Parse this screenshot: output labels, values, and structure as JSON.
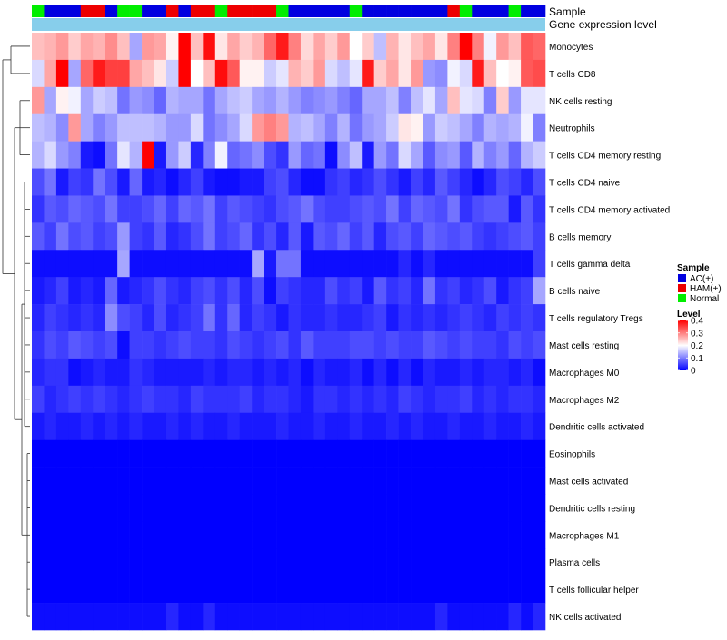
{
  "chart_data": {
    "type": "heatmap",
    "title": "",
    "annotation_labels": {
      "sample": "Sample",
      "gene_expression": "Gene expression level"
    },
    "sample_groups": [
      "Normal",
      "AC(+)",
      "AC(+)",
      "AC(+)",
      "HAM(+)",
      "HAM(+)",
      "AC(+)",
      "Normal",
      "Normal",
      "AC(+)",
      "AC(+)",
      "HAM(+)",
      "AC(+)",
      "HAM(+)",
      "HAM(+)",
      "Normal",
      "HAM(+)",
      "HAM(+)",
      "HAM(+)",
      "HAM(+)",
      "Normal",
      "AC(+)",
      "AC(+)",
      "AC(+)",
      "AC(+)",
      "AC(+)",
      "Normal",
      "AC(+)",
      "AC(+)",
      "AC(+)",
      "AC(+)",
      "AC(+)",
      "AC(+)",
      "AC(+)",
      "HAM(+)",
      "Normal",
      "AC(+)",
      "AC(+)",
      "AC(+)",
      "Normal",
      "AC(+)",
      "AC(+)"
    ],
    "rows": [
      "Monocytes",
      "T cells CD8",
      "NK cells resting",
      "Neutrophils",
      "T cells CD4 memory resting",
      "T cells CD4 naive",
      "T cells CD4 memory activated",
      "B cells memory",
      "T cells gamma delta",
      "B cells naive",
      "T cells regulatory  Tregs",
      "Mast cells resting",
      "Macrophages M0",
      "Macrophages M2",
      "Dendritic cells activated",
      "Eosinophils",
      "Mast cells activated",
      "Dendritic cells resting",
      "Macrophages M1",
      "Plasma cells",
      "T cells follicular helper",
      "NK cells activated"
    ],
    "values": [
      [
        0.25,
        0.26,
        0.28,
        0.24,
        0.27,
        0.26,
        0.29,
        0.25,
        0.13,
        0.28,
        0.27,
        0.21,
        0.42,
        0.25,
        0.39,
        0.22,
        0.27,
        0.24,
        0.26,
        0.32,
        0.38,
        0.3,
        0.23,
        0.27,
        0.24,
        0.28,
        0.2,
        0.24,
        0.15,
        0.26,
        0.22,
        0.25,
        0.27,
        0.22,
        0.3,
        0.42,
        0.3,
        0.19,
        0.28,
        0.25,
        0.33,
        0.32
      ],
      [
        0.17,
        0.27,
        0.4,
        0.13,
        0.32,
        0.38,
        0.35,
        0.35,
        0.27,
        0.25,
        0.22,
        0.16,
        0.4,
        0.2,
        0.25,
        0.39,
        0.33,
        0.21,
        0.21,
        0.16,
        0.18,
        0.26,
        0.24,
        0.28,
        0.17,
        0.15,
        0.18,
        0.38,
        0.24,
        0.27,
        0.22,
        0.28,
        0.12,
        0.11,
        0.19,
        0.17,
        0.38,
        0.25,
        0.2,
        0.21,
        0.33,
        0.34
      ],
      [
        0.28,
        0.13,
        0.21,
        0.19,
        0.13,
        0.16,
        0.15,
        0.09,
        0.12,
        0.11,
        0.08,
        0.14,
        0.13,
        0.13,
        0.09,
        0.13,
        0.15,
        0.16,
        0.13,
        0.12,
        0.14,
        0.12,
        0.1,
        0.11,
        0.12,
        0.1,
        0.08,
        0.13,
        0.13,
        0.15,
        0.1,
        0.15,
        0.18,
        0.13,
        0.25,
        0.18,
        0.17,
        0.1,
        0.24,
        0.12,
        0.18,
        0.18
      ],
      [
        0.15,
        0.14,
        0.11,
        0.28,
        0.13,
        0.1,
        0.12,
        0.15,
        0.15,
        0.15,
        0.14,
        0.12,
        0.12,
        0.17,
        0.09,
        0.11,
        0.13,
        0.17,
        0.28,
        0.3,
        0.28,
        0.14,
        0.15,
        0.13,
        0.1,
        0.14,
        0.09,
        0.12,
        0.13,
        0.16,
        0.22,
        0.21,
        0.12,
        0.16,
        0.15,
        0.13,
        0.1,
        0.14,
        0.13,
        0.14,
        0.19,
        0.1
      ],
      [
        0.14,
        0.17,
        0.12,
        0.1,
        0.02,
        0.01,
        0.09,
        0.18,
        0.14,
        0.4,
        0.02,
        0.12,
        0.16,
        0.03,
        0.1,
        0.19,
        0.08,
        0.09,
        0.11,
        0.06,
        0.04,
        0.12,
        0.08,
        0.09,
        0.01,
        0.11,
        0.15,
        0.02,
        0.12,
        0.09,
        0.17,
        0.13,
        0.07,
        0.11,
        0.12,
        0.07,
        0.14,
        0.1,
        0.12,
        0.08,
        0.14,
        0.16
      ],
      [
        0.06,
        0.09,
        0.02,
        0.05,
        0.04,
        0.09,
        0.06,
        0.02,
        0.08,
        0.02,
        0.03,
        0.01,
        0.03,
        0.05,
        0.02,
        0.01,
        0.01,
        0.02,
        0.02,
        0.05,
        0.06,
        0.03,
        0.01,
        0.01,
        0.04,
        0.05,
        0.03,
        0.04,
        0.06,
        0.04,
        0.02,
        0.05,
        0.03,
        0.07,
        0.05,
        0.03,
        0.01,
        0.03,
        0.06,
        0.05,
        0.03,
        0.06
      ],
      [
        0.04,
        0.07,
        0.06,
        0.08,
        0.07,
        0.06,
        0.09,
        0.05,
        0.05,
        0.06,
        0.08,
        0.05,
        0.08,
        0.07,
        0.09,
        0.05,
        0.07,
        0.06,
        0.05,
        0.04,
        0.06,
        0.07,
        0.09,
        0.06,
        0.05,
        0.05,
        0.06,
        0.07,
        0.06,
        0.09,
        0.05,
        0.08,
        0.07,
        0.06,
        0.09,
        0.04,
        0.06,
        0.07,
        0.07,
        0.02,
        0.07,
        0.04
      ],
      [
        0.07,
        0.05,
        0.09,
        0.06,
        0.07,
        0.05,
        0.06,
        0.12,
        0.05,
        0.04,
        0.07,
        0.03,
        0.04,
        0.06,
        0.09,
        0.05,
        0.06,
        0.08,
        0.04,
        0.06,
        0.03,
        0.07,
        0.02,
        0.07,
        0.06,
        0.08,
        0.05,
        0.07,
        0.03,
        0.06,
        0.07,
        0.05,
        0.08,
        0.07,
        0.06,
        0.07,
        0.05,
        0.04,
        0.05,
        0.06,
        0.07,
        0.05
      ],
      [
        0.01,
        0.01,
        0.01,
        0.01,
        0.01,
        0.01,
        0.01,
        0.13,
        0.01,
        0.01,
        0.01,
        0.01,
        0.01,
        0.01,
        0.01,
        0.01,
        0.01,
        0.01,
        0.13,
        0.02,
        0.09,
        0.09,
        0.01,
        0.01,
        0.01,
        0.01,
        0.01,
        0.01,
        0.01,
        0.01,
        0.03,
        0.01,
        0.03,
        0.01,
        0.01,
        0.01,
        0.01,
        0.01,
        0.01,
        0.01,
        0.01,
        0.05
      ],
      [
        0.02,
        0.03,
        0.05,
        0.02,
        0.03,
        0.02,
        0.08,
        0.02,
        0.03,
        0.04,
        0.06,
        0.04,
        0.03,
        0.05,
        0.06,
        0.04,
        0.06,
        0.03,
        0.06,
        0.01,
        0.05,
        0.04,
        0.03,
        0.03,
        0.06,
        0.04,
        0.05,
        0.02,
        0.07,
        0.04,
        0.05,
        0.03,
        0.09,
        0.04,
        0.05,
        0.03,
        0.04,
        0.06,
        0.02,
        0.04,
        0.05,
        0.13
      ],
      [
        0.03,
        0.05,
        0.04,
        0.03,
        0.04,
        0.03,
        0.11,
        0.06,
        0.05,
        0.03,
        0.06,
        0.03,
        0.04,
        0.05,
        0.09,
        0.04,
        0.08,
        0.03,
        0.05,
        0.04,
        0.02,
        0.04,
        0.03,
        0.03,
        0.04,
        0.03,
        0.03,
        0.04,
        0.05,
        0.02,
        0.04,
        0.03,
        0.04,
        0.03,
        0.04,
        0.05,
        0.04,
        0.03,
        0.05,
        0.04,
        0.05,
        0.04
      ],
      [
        0.04,
        0.06,
        0.05,
        0.07,
        0.06,
        0.05,
        0.06,
        0.01,
        0.05,
        0.05,
        0.04,
        0.05,
        0.06,
        0.05,
        0.05,
        0.04,
        0.06,
        0.05,
        0.04,
        0.05,
        0.06,
        0.04,
        0.07,
        0.05,
        0.05,
        0.05,
        0.06,
        0.06,
        0.05,
        0.06,
        0.05,
        0.05,
        0.07,
        0.06,
        0.05,
        0.06,
        0.05,
        0.05,
        0.04,
        0.06,
        0.05,
        0.06
      ],
      [
        0.03,
        0.04,
        0.04,
        0.01,
        0.02,
        0.03,
        0.02,
        0.02,
        0.04,
        0.03,
        0.02,
        0.02,
        0.02,
        0.02,
        0.03,
        0.02,
        0.03,
        0.03,
        0.02,
        0.03,
        0.02,
        0.03,
        0.01,
        0.03,
        0.02,
        0.02,
        0.03,
        0.01,
        0.03,
        0.01,
        0.03,
        0.01,
        0.03,
        0.02,
        0.02,
        0.03,
        0.02,
        0.03,
        0.03,
        0.02,
        0.03,
        0.01
      ],
      [
        0.05,
        0.03,
        0.04,
        0.05,
        0.04,
        0.05,
        0.04,
        0.03,
        0.04,
        0.05,
        0.04,
        0.04,
        0.03,
        0.05,
        0.04,
        0.04,
        0.04,
        0.05,
        0.03,
        0.04,
        0.04,
        0.03,
        0.02,
        0.04,
        0.04,
        0.03,
        0.04,
        0.03,
        0.04,
        0.03,
        0.05,
        0.04,
        0.03,
        0.04,
        0.04,
        0.05,
        0.03,
        0.04,
        0.03,
        0.04,
        0.04,
        0.03
      ],
      [
        0.02,
        0.03,
        0.02,
        0.02,
        0.03,
        0.02,
        0.03,
        0.02,
        0.03,
        0.02,
        0.02,
        0.03,
        0.02,
        0.03,
        0.02,
        0.02,
        0.03,
        0.02,
        0.02,
        0.02,
        0.03,
        0.02,
        0.02,
        0.03,
        0.02,
        0.02,
        0.03,
        0.02,
        0.02,
        0.03,
        0.02,
        0.03,
        0.02,
        0.02,
        0.03,
        0.02,
        0.02,
        0.03,
        0.02,
        0.02,
        0.03,
        0.02
      ],
      [
        0,
        0,
        0,
        0,
        0,
        0,
        0,
        0,
        0,
        0,
        0,
        0,
        0,
        0,
        0,
        0,
        0,
        0,
        0,
        0,
        0,
        0,
        0,
        0,
        0,
        0,
        0,
        0,
        0,
        0,
        0,
        0,
        0,
        0,
        0,
        0,
        0,
        0,
        0,
        0,
        0,
        0
      ],
      [
        0,
        0,
        0,
        0,
        0,
        0,
        0,
        0,
        0,
        0,
        0,
        0,
        0,
        0,
        0,
        0,
        0,
        0,
        0,
        0,
        0,
        0,
        0,
        0,
        0,
        0,
        0,
        0,
        0,
        0,
        0,
        0,
        0,
        0,
        0,
        0,
        0,
        0,
        0,
        0,
        0,
        0
      ],
      [
        0,
        0,
        0,
        0,
        0,
        0,
        0,
        0,
        0,
        0,
        0,
        0,
        0,
        0,
        0,
        0,
        0,
        0,
        0,
        0,
        0,
        0,
        0,
        0,
        0,
        0,
        0,
        0,
        0,
        0,
        0,
        0,
        0,
        0,
        0,
        0,
        0,
        0,
        0,
        0,
        0,
        0
      ],
      [
        0,
        0,
        0,
        0,
        0,
        0,
        0,
        0,
        0,
        0,
        0,
        0,
        0,
        0,
        0,
        0,
        0,
        0,
        0,
        0,
        0,
        0,
        0,
        0,
        0,
        0,
        0,
        0,
        0,
        0,
        0,
        0,
        0,
        0,
        0,
        0,
        0,
        0,
        0,
        0,
        0,
        0
      ],
      [
        0,
        0,
        0,
        0,
        0,
        0,
        0,
        0,
        0,
        0,
        0,
        0,
        0,
        0,
        0,
        0,
        0,
        0,
        0,
        0,
        0,
        0,
        0,
        0,
        0,
        0,
        0,
        0,
        0,
        0,
        0,
        0,
        0,
        0,
        0,
        0,
        0,
        0,
        0,
        0,
        0,
        0
      ],
      [
        0,
        0,
        0,
        0,
        0,
        0,
        0,
        0,
        0,
        0,
        0,
        0,
        0,
        0,
        0,
        0,
        0,
        0,
        0,
        0,
        0,
        0,
        0,
        0,
        0,
        0,
        0,
        0,
        0,
        0,
        0,
        0,
        0,
        0,
        0,
        0,
        0,
        0,
        0,
        0,
        0,
        0
      ],
      [
        0.01,
        0.01,
        0.01,
        0.01,
        0.01,
        0.01,
        0.01,
        0.01,
        0.01,
        0.01,
        0.01,
        0.03,
        0.01,
        0.01,
        0.03,
        0.01,
        0.01,
        0.01,
        0.01,
        0.01,
        0.01,
        0.01,
        0.01,
        0.01,
        0.01,
        0.01,
        0.01,
        0.01,
        0.01,
        0.01,
        0.01,
        0.01,
        0.01,
        0.03,
        0.01,
        0.01,
        0.01,
        0.01,
        0.01,
        0.03,
        0.01,
        0.03
      ]
    ],
    "legend": {
      "sample_title": "Sample",
      "sample_entries": [
        {
          "label": "AC(+)",
          "color": "#0000E0"
        },
        {
          "label": "HAM(+)",
          "color": "#EE0000"
        },
        {
          "label": "Normal",
          "color": "#00EE00"
        }
      ],
      "level_title": "Level",
      "level_ticks": [
        0.4,
        0.3,
        0.2,
        0.1,
        0
      ],
      "level_tick_labels": [
        "0.4",
        "0.3",
        "0.2",
        "0.1",
        "0"
      ]
    },
    "colors": {
      "low": "#0000FF",
      "mid": "#FFFFFF",
      "high": "#FF0000",
      "gene_bar": "#87CEEB",
      "annotation_bg": "#FFFFFF"
    },
    "scale": {
      "min": 0,
      "mid": 0.2,
      "max": 0.4
    },
    "legend_position": "right"
  }
}
